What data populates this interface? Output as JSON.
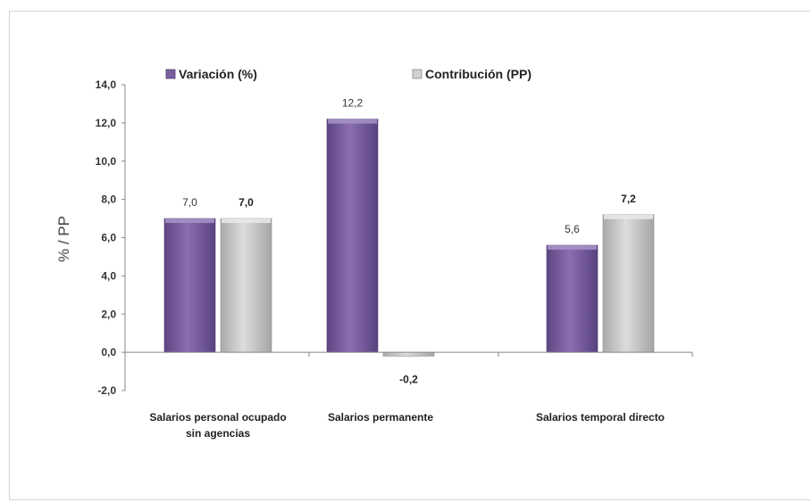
{
  "chart_data": {
    "type": "bar",
    "categories": [
      "Salarios personal ocupado sin agencias",
      "Salarios permanente",
      "Salarios temporal directo"
    ],
    "category_lines": [
      [
        "Salarios personal ocupado",
        "sin agencias"
      ],
      [
        "Salarios permanente"
      ],
      [
        "Salarios temporal directo"
      ]
    ],
    "series": [
      {
        "name": "Variación (%)",
        "values": [
          7.0,
          12.2,
          5.6
        ],
        "labels": [
          "7,0",
          "12,2",
          "5,6"
        ],
        "color": "#8064a2",
        "bold_labels": false
      },
      {
        "name": "Contribución (PP)",
        "values": [
          7.0,
          -0.2,
          7.2
        ],
        "labels": [
          "7,0",
          "-0,2",
          "7,2"
        ],
        "color": "#c4c4c4",
        "bold_labels": true
      }
    ],
    "ylabel": "% / PP",
    "xlabel": "",
    "ylim": [
      -2.0,
      14.0
    ],
    "yticks": [
      14.0,
      12.0,
      10.0,
      8.0,
      6.0,
      4.0,
      2.0,
      0.0,
      -2.0
    ],
    "ytick_labels": [
      "14,0",
      "12,0",
      "10,0",
      "8,0",
      "6,0",
      "4,0",
      "2,0",
      "0,0",
      "-2,0"
    ],
    "grid": false,
    "legend_position": "top"
  }
}
